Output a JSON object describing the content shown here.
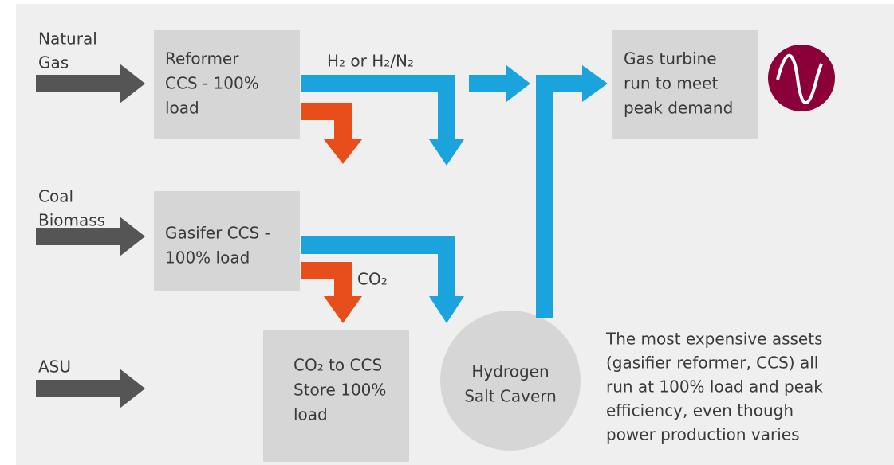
{
  "inputs": [
    {
      "lines": [
        "Natural",
        "Gas"
      ]
    },
    {
      "lines": [
        "Coal",
        "Biomass"
      ]
    },
    {
      "lines": [
        "ASU"
      ]
    }
  ],
  "nodes": {
    "reformer": {
      "lines": [
        "Reformer",
        "CCS - 100%",
        "load"
      ]
    },
    "gasifier": {
      "lines": [
        "Gasifer CCS -",
        "100% load"
      ]
    },
    "co2_store": {
      "lines": [
        "CO₂ to CCS",
        "Store 100%",
        "load"
      ]
    },
    "cavern": {
      "lines": [
        "Hydrogen",
        "Salt Cavern"
      ]
    },
    "turbine": {
      "lines": [
        "Gas turbine",
        "run to meet",
        "peak demand"
      ]
    }
  },
  "flow_labels": {
    "hydrogen": "H₂ or H₂/N₂",
    "co2": "CO₂"
  },
  "note": {
    "lines": [
      "The most expensive assets",
      "(gasifier reformer, CCS) all",
      "run at 100% load and peak",
      "efficiency, even though",
      "power production varies"
    ]
  }
}
